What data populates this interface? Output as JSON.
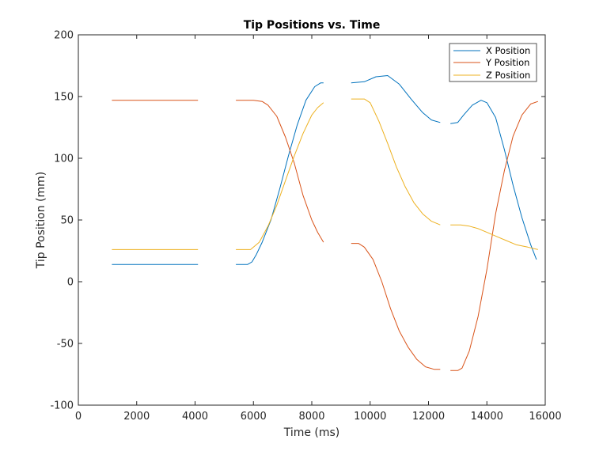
{
  "chart_data": {
    "type": "line",
    "title": "Tip Positions vs. Time",
    "xlabel": "Time (ms)",
    "ylabel": "Tip Position (mm)",
    "xlim": [
      0,
      16000
    ],
    "ylim": [
      -100,
      200
    ],
    "xticks": [
      0,
      2000,
      4000,
      6000,
      8000,
      10000,
      12000,
      14000,
      16000
    ],
    "yticks": [
      -100,
      -50,
      0,
      50,
      100,
      150,
      200
    ],
    "grid": false,
    "legend_position": "top-right",
    "series": [
      {
        "name": "X Position",
        "color": "#0072BD",
        "segments": [
          [
            [
              1150,
              14
            ],
            [
              2000,
              14
            ],
            [
              3000,
              14
            ],
            [
              4100,
              14
            ]
          ],
          [
            [
              5400,
              14
            ],
            [
              5800,
              14
            ],
            [
              5950,
              16
            ],
            [
              6100,
              22
            ],
            [
              6300,
              32
            ],
            [
              6600,
              50
            ],
            [
              6900,
              75
            ],
            [
              7200,
              102
            ],
            [
              7500,
              127
            ],
            [
              7800,
              147
            ],
            [
              8100,
              158
            ],
            [
              8300,
              161
            ],
            [
              8400,
              161
            ]
          ],
          [
            [
              9350,
              161
            ],
            [
              9800,
              162
            ],
            [
              10200,
              166
            ],
            [
              10600,
              167
            ],
            [
              11000,
              160
            ],
            [
              11400,
              148
            ],
            [
              11800,
              137
            ],
            [
              12100,
              131
            ],
            [
              12400,
              129
            ]
          ],
          [
            [
              12750,
              128
            ],
            [
              13000,
              129
            ],
            [
              13200,
              135
            ],
            [
              13500,
              143
            ],
            [
              13800,
              147
            ],
            [
              14000,
              145
            ],
            [
              14300,
              133
            ],
            [
              14600,
              107
            ],
            [
              14900,
              78
            ],
            [
              15200,
              52
            ],
            [
              15500,
              30
            ],
            [
              15700,
              18
            ]
          ]
        ]
      },
      {
        "name": "Y Position",
        "color": "#D95319",
        "segments": [
          [
            [
              1150,
              147
            ],
            [
              2000,
              147
            ],
            [
              3000,
              147
            ],
            [
              4100,
              147
            ]
          ],
          [
            [
              5400,
              147
            ],
            [
              6000,
              147
            ],
            [
              6300,
              146
            ],
            [
              6500,
              143
            ],
            [
              6800,
              134
            ],
            [
              7100,
              117
            ],
            [
              7400,
              96
            ],
            [
              7700,
              70
            ],
            [
              8000,
              50
            ],
            [
              8200,
              40
            ],
            [
              8400,
              32
            ]
          ],
          [
            [
              9350,
              31
            ],
            [
              9600,
              31
            ],
            [
              9800,
              28
            ],
            [
              10100,
              18
            ],
            [
              10400,
              0
            ],
            [
              10700,
              -22
            ],
            [
              11000,
              -40
            ],
            [
              11300,
              -53
            ],
            [
              11600,
              -63
            ],
            [
              11900,
              -69
            ],
            [
              12200,
              -71
            ],
            [
              12400,
              -71
            ]
          ],
          [
            [
              12750,
              -72
            ],
            [
              13000,
              -72
            ],
            [
              13150,
              -70
            ],
            [
              13400,
              -56
            ],
            [
              13700,
              -28
            ],
            [
              14000,
              10
            ],
            [
              14300,
              55
            ],
            [
              14600,
              90
            ],
            [
              14900,
              118
            ],
            [
              15200,
              135
            ],
            [
              15500,
              144
            ],
            [
              15750,
              146
            ]
          ]
        ]
      },
      {
        "name": "Z Position",
        "color": "#EDB120",
        "segments": [
          [
            [
              1150,
              26
            ],
            [
              2000,
              26
            ],
            [
              3000,
              26
            ],
            [
              4100,
              26
            ]
          ],
          [
            [
              5400,
              26
            ],
            [
              5900,
              26
            ],
            [
              6200,
              32
            ],
            [
              6500,
              45
            ],
            [
              6800,
              62
            ],
            [
              7100,
              82
            ],
            [
              7400,
              102
            ],
            [
              7700,
              120
            ],
            [
              8000,
              135
            ],
            [
              8200,
              141
            ],
            [
              8400,
              145
            ]
          ],
          [
            [
              9350,
              148
            ],
            [
              9800,
              148
            ],
            [
              10000,
              145
            ],
            [
              10300,
              130
            ],
            [
              10600,
              112
            ],
            [
              10900,
              93
            ],
            [
              11200,
              77
            ],
            [
              11500,
              64
            ],
            [
              11800,
              55
            ],
            [
              12100,
              49
            ],
            [
              12400,
              46
            ]
          ],
          [
            [
              12750,
              46
            ],
            [
              13100,
              46
            ],
            [
              13400,
              45
            ],
            [
              13700,
              43
            ],
            [
              14000,
              40
            ],
            [
              14300,
              37
            ],
            [
              14600,
              34
            ],
            [
              15000,
              30
            ],
            [
              15400,
              28
            ],
            [
              15750,
              26
            ]
          ]
        ]
      }
    ]
  }
}
